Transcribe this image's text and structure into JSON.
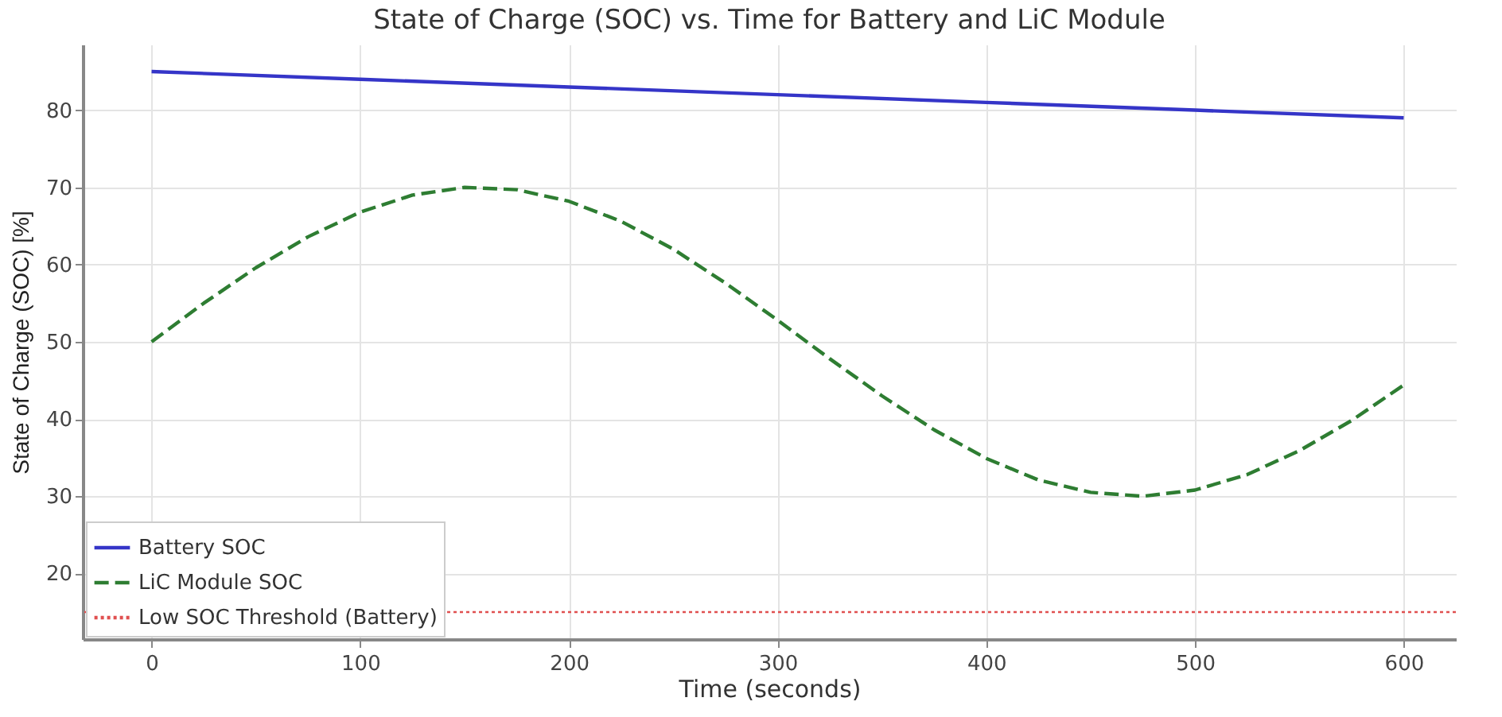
{
  "chart_data": {
    "type": "line",
    "title": "State of Charge (SOC) vs. Time for Battery and LiC Module",
    "xlabel": "Time (seconds)",
    "ylabel": "State of Charge (SOC) [%]",
    "series": [
      {
        "name": "Battery SOC",
        "color": "#3535c8",
        "line_style": "solid",
        "x": [
          0,
          100,
          200,
          300,
          400,
          500,
          600
        ],
        "values": [
          85,
          84,
          83,
          82,
          81,
          80,
          79
        ]
      },
      {
        "name": "LiC Module SOC",
        "color": "#2e7d32",
        "line_style": "dashed",
        "x": [
          0,
          25,
          50,
          75,
          100,
          125,
          150,
          175,
          200,
          225,
          250,
          275,
          300,
          325,
          350,
          375,
          400,
          425,
          450,
          475,
          500,
          525,
          550,
          575,
          600
        ],
        "values": [
          50,
          55,
          59.6,
          63.6,
          66.8,
          69,
          70,
          69.7,
          68.2,
          65.6,
          62,
          57.6,
          52.8,
          47.8,
          43,
          38.6,
          34.9,
          32.1,
          30.5,
          30,
          30.8,
          32.8,
          35.9,
          39.8,
          44.4
        ]
      }
    ],
    "ref_lines": [
      {
        "axis": "y",
        "value": 15,
        "label": "Low SOC Threshold (Battery)",
        "color": "#e05050",
        "line_style": "dotted"
      }
    ],
    "xlim": [
      -33,
      625
    ],
    "xticks": [
      0,
      100,
      200,
      300,
      400,
      500,
      600
    ],
    "ylim": [
      11.5,
      88.5
    ],
    "yticks": [
      20,
      30,
      40,
      50,
      60,
      70,
      80
    ],
    "grid": true,
    "legend": "bottom left"
  }
}
